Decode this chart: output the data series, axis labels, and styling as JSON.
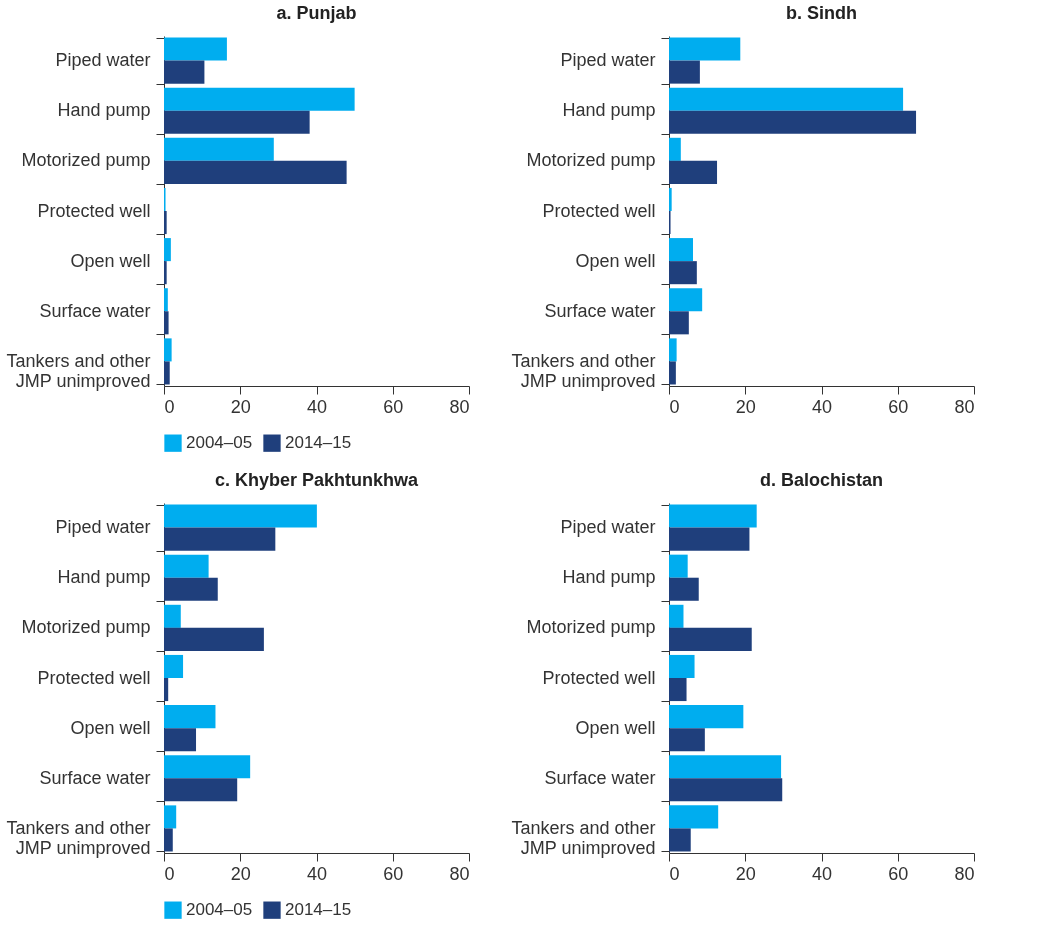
{
  "chart_data": [
    {
      "type": "bar",
      "orientation": "horizontal",
      "title": "a. Punjab",
      "categories": [
        "Piped water",
        "Hand pump",
        "Motorized pump",
        "Protected well",
        "Open well",
        "Surface water",
        "Tankers and other\nJMP unimproved"
      ],
      "xlim": [
        0,
        80
      ],
      "xticks": [
        0,
        20,
        40,
        60,
        80
      ],
      "grid": false,
      "legend": "bottom",
      "series": [
        {
          "name": "2004–05",
          "color": "#00adef",
          "values": [
            16.5,
            50,
            28.8,
            0.4,
            1.8,
            1.0,
            2.0
          ]
        },
        {
          "name": "2014–15",
          "color": "#1f3f7c",
          "values": [
            10.6,
            38.2,
            47.9,
            0.7,
            0.7,
            1.2,
            1.5
          ]
        }
      ]
    },
    {
      "type": "bar",
      "orientation": "horizontal",
      "title": "b. Sindh",
      "categories": [
        "Piped water",
        "Hand pump",
        "Motorized pump",
        "Protected well",
        "Open well",
        "Surface water",
        "Tankers and other\nJMP unimproved"
      ],
      "xlim": [
        0,
        80
      ],
      "xticks": [
        0,
        20,
        40,
        60,
        80
      ],
      "grid": false,
      "legend": "bottom",
      "series": [
        {
          "name": "2004–05",
          "color": "#00adef",
          "values": [
            18.7,
            61.4,
            3.1,
            0.7,
            6.3,
            8.7,
            2.0
          ]
        },
        {
          "name": "2014–15",
          "color": "#1f3f7c",
          "values": [
            8.1,
            64.8,
            12.6,
            0.4,
            7.3,
            5.2,
            1.8
          ]
        }
      ]
    },
    {
      "type": "bar",
      "orientation": "horizontal",
      "title": "c. Khyber Pakhtunkhwa",
      "categories": [
        "Piped water",
        "Hand pump",
        "Motorized pump",
        "Protected well",
        "Open well",
        "Surface water",
        "Tankers and other\nJMP unimproved"
      ],
      "xlim": [
        0,
        80
      ],
      "xticks": [
        0,
        20,
        40,
        60,
        80
      ],
      "grid": false,
      "legend": "bottom",
      "series": [
        {
          "name": "2004–05",
          "color": "#00adef",
          "values": [
            40.1,
            11.7,
            4.4,
            5.0,
            13.5,
            22.6,
            3.2
          ]
        },
        {
          "name": "2014–15",
          "color": "#1f3f7c",
          "values": [
            29.2,
            14.1,
            26.2,
            1.1,
            8.4,
            19.2,
            2.3
          ]
        }
      ]
    },
    {
      "type": "bar",
      "orientation": "horizontal",
      "title": "d. Balochistan",
      "categories": [
        "Piped water",
        "Hand pump",
        "Motorized pump",
        "Protected well",
        "Open well",
        "Surface water",
        "Tankers and other\nJMP unimproved"
      ],
      "xlim": [
        0,
        80
      ],
      "xticks": [
        0,
        20,
        40,
        60,
        80
      ],
      "grid": false,
      "legend": "bottom",
      "series": [
        {
          "name": "2004–05",
          "color": "#00adef",
          "values": [
            23.0,
            4.9,
            3.8,
            6.7,
            19.5,
            29.4,
            12.9
          ]
        },
        {
          "name": "2014–15",
          "color": "#1f3f7c",
          "values": [
            21.1,
            7.8,
            21.7,
            4.6,
            9.4,
            29.7,
            5.7
          ]
        }
      ]
    }
  ]
}
